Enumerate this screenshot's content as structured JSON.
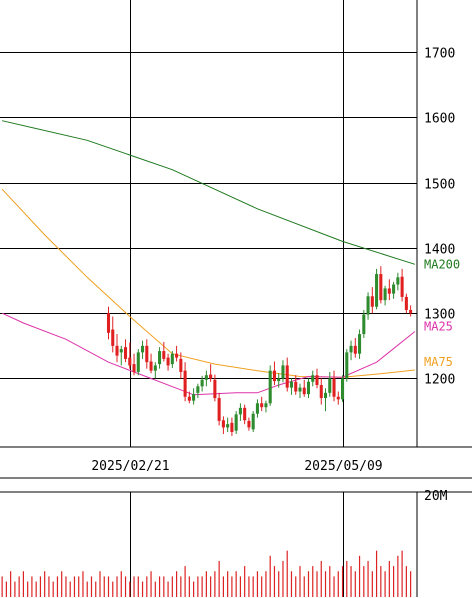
{
  "chart_data": {
    "type": "candlestick",
    "colors": {
      "up": "#2e8b2e",
      "down": "#e02020",
      "ma200": "#1f7a1f",
      "ma25": "#dd33aa",
      "ma75": "#f0a020",
      "volume": "#dd2222",
      "grid": "#000000"
    },
    "price_axis": {
      "ylim": [
        1095,
        1780
      ],
      "ticks": [
        1200,
        1300,
        1400,
        1500,
        1600,
        1700
      ],
      "tick_labels": [
        "1200",
        "1300",
        "1400",
        "1500",
        "1600",
        "1700"
      ]
    },
    "x_axis": {
      "ticks": [
        {
          "index": 30,
          "label": "2025/02/21"
        },
        {
          "index": 80,
          "label": "2025/05/09"
        }
      ]
    },
    "series_labels": {
      "ma200": "MA200",
      "ma25": "MA25",
      "ma75": "MA75"
    },
    "ma200": [
      {
        "i": 0,
        "v": 1595
      },
      {
        "i": 20,
        "v": 1565
      },
      {
        "i": 40,
        "v": 1520
      },
      {
        "i": 60,
        "v": 1460
      },
      {
        "i": 80,
        "v": 1410
      },
      {
        "i": 97,
        "v": 1375
      }
    ],
    "ma75": [
      {
        "i": 0,
        "v": 1490
      },
      {
        "i": 10,
        "v": 1420
      },
      {
        "i": 20,
        "v": 1355
      },
      {
        "i": 30,
        "v": 1295
      },
      {
        "i": 40,
        "v": 1238
      },
      {
        "i": 50,
        "v": 1222
      },
      {
        "i": 60,
        "v": 1212
      },
      {
        "i": 70,
        "v": 1203
      },
      {
        "i": 80,
        "v": 1202
      },
      {
        "i": 90,
        "v": 1208
      },
      {
        "i": 97,
        "v": 1213
      }
    ],
    "ma25": [
      {
        "i": 0,
        "v": 1300
      },
      {
        "i": 5,
        "v": 1285
      },
      {
        "i": 15,
        "v": 1260
      },
      {
        "i": 25,
        "v": 1225
      },
      {
        "i": 35,
        "v": 1200
      },
      {
        "i": 45,
        "v": 1175
      },
      {
        "i": 55,
        "v": 1178
      },
      {
        "i": 60,
        "v": 1178
      },
      {
        "i": 65,
        "v": 1190
      },
      {
        "i": 72,
        "v": 1203
      },
      {
        "i": 80,
        "v": 1202
      },
      {
        "i": 88,
        "v": 1225
      },
      {
        "i": 97,
        "v": 1272
      }
    ],
    "candles": [
      [
        1300,
        1310,
        1260,
        1270
      ],
      [
        1275,
        1295,
        1240,
        1250
      ],
      [
        1250,
        1268,
        1225,
        1235
      ],
      [
        1240,
        1250,
        1220,
        1245
      ],
      [
        1248,
        1260,
        1225,
        1230
      ],
      [
        1232,
        1255,
        1215,
        1220
      ],
      [
        1222,
        1238,
        1205,
        1210
      ],
      [
        1210,
        1245,
        1205,
        1240
      ],
      [
        1240,
        1258,
        1230,
        1250
      ],
      [
        1250,
        1260,
        1215,
        1225
      ],
      [
        1226,
        1238,
        1208,
        1212
      ],
      [
        1212,
        1225,
        1200,
        1220
      ],
      [
        1222,
        1248,
        1215,
        1242
      ],
      [
        1242,
        1256,
        1226,
        1230
      ],
      [
        1232,
        1238,
        1212,
        1220
      ],
      [
        1222,
        1242,
        1216,
        1238
      ],
      [
        1238,
        1250,
        1226,
        1232
      ],
      [
        1230,
        1240,
        1200,
        1210
      ],
      [
        1212,
        1225,
        1165,
        1172
      ],
      [
        1172,
        1180,
        1162,
        1166
      ],
      [
        1166,
        1185,
        1160,
        1176
      ],
      [
        1178,
        1192,
        1170,
        1188
      ],
      [
        1188,
        1204,
        1180,
        1198
      ],
      [
        1198,
        1212,
        1188,
        1205
      ],
      [
        1206,
        1222,
        1195,
        1200
      ],
      [
        1198,
        1206,
        1165,
        1170
      ],
      [
        1170,
        1178,
        1128,
        1135
      ],
      [
        1136,
        1142,
        1115,
        1125
      ],
      [
        1125,
        1140,
        1118,
        1130
      ],
      [
        1132,
        1140,
        1112,
        1118
      ],
      [
        1120,
        1150,
        1115,
        1145
      ],
      [
        1145,
        1162,
        1135,
        1155
      ],
      [
        1155,
        1160,
        1130,
        1136
      ],
      [
        1135,
        1140,
        1120,
        1125
      ],
      [
        1122,
        1150,
        1118,
        1146
      ],
      [
        1146,
        1168,
        1140,
        1162
      ],
      [
        1162,
        1172,
        1150,
        1156
      ],
      [
        1156,
        1166,
        1148,
        1162
      ],
      [
        1162,
        1220,
        1158,
        1212
      ],
      [
        1212,
        1226,
        1190,
        1196
      ],
      [
        1196,
        1208,
        1186,
        1200
      ],
      [
        1200,
        1228,
        1194,
        1220
      ],
      [
        1220,
        1232,
        1180,
        1186
      ],
      [
        1186,
        1200,
        1175,
        1195
      ],
      [
        1195,
        1205,
        1175,
        1180
      ],
      [
        1180,
        1192,
        1170,
        1186
      ],
      [
        1186,
        1198,
        1172,
        1176
      ],
      [
        1176,
        1200,
        1170,
        1195
      ],
      [
        1195,
        1212,
        1188,
        1205
      ],
      [
        1205,
        1215,
        1185,
        1190
      ],
      [
        1190,
        1200,
        1160,
        1170
      ],
      [
        1170,
        1185,
        1150,
        1178
      ],
      [
        1178,
        1210,
        1172,
        1200
      ],
      [
        1200,
        1212,
        1165,
        1172
      ],
      [
        1172,
        1180,
        1160,
        1168
      ],
      [
        1168,
        1205,
        1164,
        1200
      ],
      [
        1200,
        1245,
        1195,
        1240
      ],
      [
        1240,
        1258,
        1228,
        1250
      ],
      [
        1250,
        1262,
        1232,
        1238
      ],
      [
        1238,
        1275,
        1230,
        1268
      ],
      [
        1268,
        1305,
        1262,
        1298
      ],
      [
        1298,
        1332,
        1290,
        1326
      ],
      [
        1326,
        1340,
        1300,
        1310
      ],
      [
        1310,
        1368,
        1306,
        1360
      ],
      [
        1360,
        1372,
        1315,
        1320
      ],
      [
        1320,
        1342,
        1312,
        1338
      ],
      [
        1338,
        1352,
        1320,
        1330
      ],
      [
        1330,
        1348,
        1322,
        1344
      ],
      [
        1344,
        1362,
        1335,
        1355
      ],
      [
        1356,
        1368,
        1318,
        1325
      ],
      [
        1325,
        1330,
        1300,
        1305
      ],
      [
        1305,
        1312,
        1295,
        1300
      ]
    ],
    "volume": {
      "ylim": [
        0,
        20
      ],
      "unit": "M",
      "ticks": [
        20
      ],
      "tick_labels": [
        "20M"
      ],
      "values": [
        4,
        3,
        4,
        5,
        4,
        3,
        4,
        4,
        3,
        4,
        5,
        3,
        4,
        4,
        3,
        4,
        5,
        4,
        6,
        4,
        3,
        4,
        4,
        5,
        4,
        5,
        7,
        4,
        5,
        4,
        5,
        4,
        6,
        4,
        4,
        5,
        4,
        5,
        8,
        6,
        5,
        7,
        9,
        5,
        4,
        6,
        4,
        5,
        6,
        5,
        7,
        5,
        6,
        4,
        5,
        6,
        7,
        6,
        5,
        8,
        6,
        7,
        5,
        9,
        6,
        5,
        7,
        6,
        8,
        9,
        6,
        5
      ]
    }
  }
}
